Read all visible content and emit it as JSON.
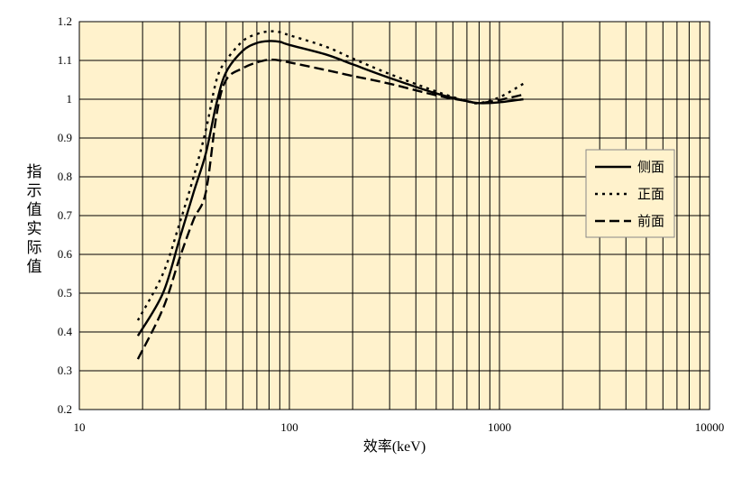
{
  "chart_data": {
    "type": "line",
    "title": "",
    "xlabel": "效率(keV)",
    "ylabel": "指示值实际值",
    "ylabel_display_lines": [
      "指",
      "示",
      "值",
      "实",
      "际",
      "值"
    ],
    "x_scale": "log",
    "xlim": [
      10,
      10000
    ],
    "ylim": [
      0.2,
      1.2
    ],
    "x_ticks": [
      10,
      100,
      1000,
      10000
    ],
    "x_tick_labels": [
      "10",
      "100",
      "1000",
      "10000"
    ],
    "y_ticks": [
      0.2,
      0.3,
      0.4,
      0.5,
      0.6,
      0.7,
      0.8,
      0.9,
      1.0,
      1.1,
      1.2
    ],
    "y_tick_labels": [
      "0.2",
      "0.3",
      "0.4",
      "0.5",
      "0.6",
      "0.7",
      "0.8",
      "0.9",
      "1",
      "1.1",
      "1.2"
    ],
    "grid": true,
    "plot_background": "#FFF2CC",
    "legend_position": "right",
    "series": [
      {
        "name": "侧面",
        "style": "solid",
        "color": "#000000",
        "x": [
          19,
          25,
          30,
          35,
          40,
          45,
          50,
          60,
          70,
          80,
          90,
          100,
          150,
          200,
          300,
          500,
          700,
          800,
          1000,
          1300
        ],
        "y": [
          0.39,
          0.5,
          0.64,
          0.76,
          0.86,
          0.99,
          1.07,
          1.125,
          1.145,
          1.15,
          1.148,
          1.14,
          1.115,
          1.09,
          1.055,
          1.015,
          0.995,
          0.99,
          0.992,
          1.0
        ]
      },
      {
        "name": "正面",
        "style": "dotted",
        "color": "#000000",
        "x": [
          19,
          25,
          30,
          35,
          40,
          45,
          50,
          60,
          70,
          80,
          90,
          100,
          150,
          200,
          300,
          500,
          700,
          800,
          1000,
          1300
        ],
        "y": [
          0.43,
          0.55,
          0.68,
          0.8,
          0.92,
          1.05,
          1.1,
          1.15,
          1.168,
          1.175,
          1.173,
          1.165,
          1.135,
          1.105,
          1.065,
          1.02,
          0.995,
          0.99,
          1.005,
          1.04
        ]
      },
      {
        "name": "前面",
        "style": "dashed",
        "color": "#000000",
        "x": [
          19,
          25,
          30,
          35,
          40,
          45,
          50,
          60,
          70,
          80,
          90,
          100,
          150,
          200,
          300,
          500,
          700,
          800,
          1000,
          1300
        ],
        "y": [
          0.33,
          0.46,
          0.59,
          0.69,
          0.76,
          0.96,
          1.05,
          1.08,
          1.095,
          1.102,
          1.1,
          1.095,
          1.075,
          1.06,
          1.04,
          1.01,
          0.995,
          0.99,
          0.998,
          1.012
        ]
      }
    ]
  }
}
